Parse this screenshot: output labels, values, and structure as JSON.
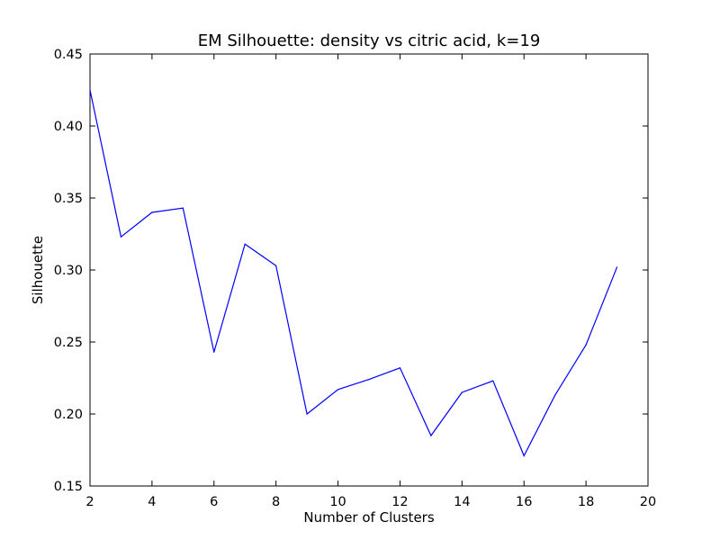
{
  "chart_data": {
    "type": "line",
    "title": "EM Silhouette: density vs citric acid, k=19",
    "xlabel": "Number of Clusters",
    "ylabel": "Silhouette",
    "xlim": [
      2,
      20
    ],
    "ylim": [
      0.15,
      0.45
    ],
    "xticks": [
      "2",
      "4",
      "6",
      "8",
      "10",
      "12",
      "14",
      "16",
      "18",
      "20"
    ],
    "yticks": [
      "0.15",
      "0.20",
      "0.25",
      "0.30",
      "0.35",
      "0.40",
      "0.45"
    ],
    "grid": false,
    "series": [
      {
        "color": "#0000ff",
        "x": [
          2,
          3,
          4,
          5,
          6,
          7,
          8,
          9,
          10,
          11,
          12,
          13,
          14,
          15,
          16,
          17,
          18,
          19
        ],
        "y": [
          0.425,
          0.323,
          0.34,
          0.343,
          0.243,
          0.318,
          0.303,
          0.2,
          0.217,
          0.224,
          0.232,
          0.185,
          0.215,
          0.223,
          0.171,
          0.213,
          0.248,
          0.302
        ]
      }
    ]
  }
}
